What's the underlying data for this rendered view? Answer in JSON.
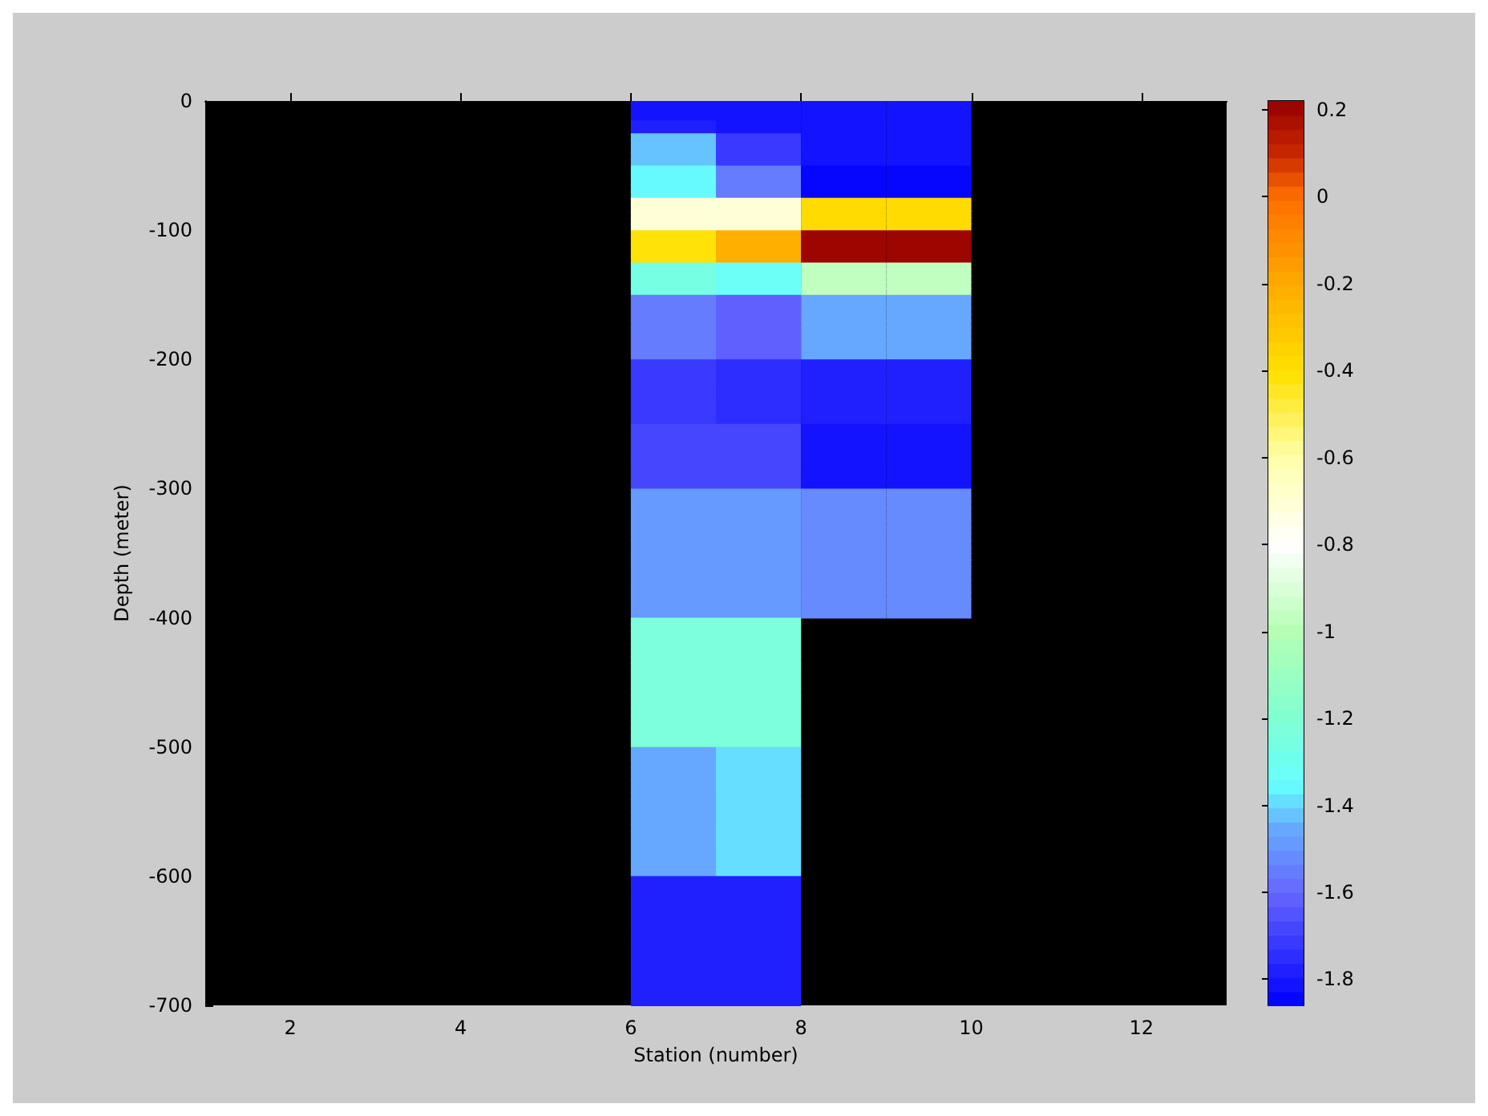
{
  "chart_data": {
    "type": "heatmap",
    "xlabel": "Station (number)",
    "ylabel": "Depth (meter)",
    "cells": [
      [
        null,
        null,
        null,
        null,
        null,
        -1.82,
        -1.82,
        -1.82,
        -1.82,
        null,
        null,
        null
      ],
      [
        null,
        null,
        null,
        null,
        null,
        -1.82,
        -1.82,
        -1.82,
        -1.82,
        null,
        null,
        null
      ],
      [
        null,
        null,
        null,
        null,
        null,
        -1.82,
        -1.82,
        -1.82,
        -1.82,
        null,
        null,
        null
      ],
      [
        null,
        null,
        null,
        null,
        null,
        -1.78,
        -1.8,
        -1.82,
        -1.82,
        null,
        null,
        null
      ],
      [
        null,
        null,
        null,
        null,
        null,
        -1.78,
        -1.8,
        -1.82,
        -1.82,
        null,
        null,
        null
      ],
      [
        null,
        null,
        null,
        null,
        null,
        -1.42,
        -1.7,
        -1.82,
        -1.82,
        null,
        null,
        null
      ],
      [
        null,
        null,
        null,
        null,
        null,
        -1.42,
        -1.7,
        -1.82,
        -1.82,
        null,
        null,
        null
      ],
      [
        null,
        null,
        null,
        null,
        null,
        -1.42,
        -1.7,
        -1.82,
        -1.82,
        null,
        null,
        null
      ],
      [
        null,
        null,
        null,
        null,
        null,
        -1.42,
        -1.7,
        -1.82,
        -1.82,
        null,
        null,
        null
      ],
      [
        null,
        null,
        null,
        null,
        null,
        -1.42,
        -1.7,
        -1.82,
        -1.82,
        null,
        null,
        null
      ],
      [
        null,
        null,
        null,
        null,
        null,
        -1.35,
        -1.55,
        -1.86,
        -1.86,
        null,
        null,
        null
      ],
      [
        null,
        null,
        null,
        null,
        null,
        -1.35,
        -1.55,
        -1.86,
        -1.86,
        null,
        null,
        null
      ],
      [
        null,
        null,
        null,
        null,
        null,
        -1.35,
        -1.55,
        -1.86,
        -1.86,
        null,
        null,
        null
      ],
      [
        null,
        null,
        null,
        null,
        null,
        -1.35,
        -1.55,
        -1.86,
        -1.86,
        null,
        null,
        null
      ],
      [
        null,
        null,
        null,
        null,
        null,
        -1.35,
        -1.55,
        -1.86,
        -1.86,
        null,
        null,
        null
      ],
      [
        null,
        null,
        null,
        null,
        null,
        -0.7,
        -0.7,
        -0.38,
        -0.38,
        null,
        null,
        null
      ],
      [
        null,
        null,
        null,
        null,
        null,
        -0.7,
        -0.7,
        -0.38,
        -0.38,
        null,
        null,
        null
      ],
      [
        null,
        null,
        null,
        null,
        null,
        -0.7,
        -0.7,
        -0.38,
        -0.38,
        null,
        null,
        null
      ],
      [
        null,
        null,
        null,
        null,
        null,
        -0.7,
        -0.7,
        -0.38,
        -0.38,
        null,
        null,
        null
      ],
      [
        null,
        null,
        null,
        null,
        null,
        -0.7,
        -0.7,
        -0.38,
        -0.38,
        null,
        null,
        null
      ],
      [
        null,
        null,
        null,
        null,
        null,
        -0.42,
        -0.22,
        0.2,
        0.2,
        null,
        null,
        null
      ],
      [
        null,
        null,
        null,
        null,
        null,
        -0.42,
        -0.22,
        0.2,
        0.2,
        null,
        null,
        null
      ],
      [
        null,
        null,
        null,
        null,
        null,
        -0.42,
        -0.22,
        0.2,
        0.2,
        null,
        null,
        null
      ],
      [
        null,
        null,
        null,
        null,
        null,
        -0.42,
        -0.22,
        0.2,
        0.2,
        null,
        null,
        null
      ],
      [
        null,
        null,
        null,
        null,
        null,
        -0.42,
        -0.22,
        0.2,
        0.2,
        null,
        null,
        null
      ],
      [
        null,
        null,
        null,
        null,
        null,
        -1.25,
        -1.33,
        -0.97,
        -0.97,
        null,
        null,
        null
      ],
      [
        null,
        null,
        null,
        null,
        null,
        -1.25,
        -1.33,
        -0.97,
        -0.97,
        null,
        null,
        null
      ],
      [
        null,
        null,
        null,
        null,
        null,
        -1.25,
        -1.33,
        -0.97,
        -0.97,
        null,
        null,
        null
      ],
      [
        null,
        null,
        null,
        null,
        null,
        -1.25,
        -1.33,
        -0.97,
        -0.97,
        null,
        null,
        null
      ],
      [
        null,
        null,
        null,
        null,
        null,
        -1.25,
        -1.33,
        -0.97,
        -0.97,
        null,
        null,
        null
      ],
      [
        null,
        null,
        null,
        null,
        null,
        -1.55,
        -1.62,
        -1.45,
        -1.45,
        null,
        null,
        null
      ],
      [
        null,
        null,
        null,
        null,
        null,
        -1.55,
        -1.62,
        -1.45,
        -1.45,
        null,
        null,
        null
      ],
      [
        null,
        null,
        null,
        null,
        null,
        -1.55,
        -1.62,
        -1.45,
        -1.45,
        null,
        null,
        null
      ],
      [
        null,
        null,
        null,
        null,
        null,
        -1.55,
        -1.62,
        -1.45,
        -1.45,
        null,
        null,
        null
      ],
      [
        null,
        null,
        null,
        null,
        null,
        -1.55,
        -1.62,
        -1.45,
        -1.45,
        null,
        null,
        null
      ],
      [
        null,
        null,
        null,
        null,
        null,
        -1.55,
        -1.62,
        -1.45,
        -1.45,
        null,
        null,
        null
      ],
      [
        null,
        null,
        null,
        null,
        null,
        -1.55,
        -1.62,
        -1.45,
        -1.45,
        null,
        null,
        null
      ],
      [
        null,
        null,
        null,
        null,
        null,
        -1.55,
        -1.62,
        -1.45,
        -1.45,
        null,
        null,
        null
      ],
      [
        null,
        null,
        null,
        null,
        null,
        -1.55,
        -1.62,
        -1.45,
        -1.45,
        null,
        null,
        null
      ],
      [
        null,
        null,
        null,
        null,
        null,
        -1.55,
        -1.62,
        -1.45,
        -1.45,
        null,
        null,
        null
      ],
      [
        null,
        null,
        null,
        null,
        null,
        -1.7,
        -1.75,
        -1.78,
        -1.78,
        null,
        null,
        null
      ],
      [
        null,
        null,
        null,
        null,
        null,
        -1.7,
        -1.75,
        -1.78,
        -1.78,
        null,
        null,
        null
      ],
      [
        null,
        null,
        null,
        null,
        null,
        -1.7,
        -1.75,
        -1.78,
        -1.78,
        null,
        null,
        null
      ],
      [
        null,
        null,
        null,
        null,
        null,
        -1.7,
        -1.75,
        -1.78,
        -1.78,
        null,
        null,
        null
      ],
      [
        null,
        null,
        null,
        null,
        null,
        -1.7,
        -1.75,
        -1.78,
        -1.78,
        null,
        null,
        null
      ],
      [
        null,
        null,
        null,
        null,
        null,
        -1.7,
        -1.75,
        -1.78,
        -1.78,
        null,
        null,
        null
      ],
      [
        null,
        null,
        null,
        null,
        null,
        -1.7,
        -1.75,
        -1.78,
        -1.78,
        null,
        null,
        null
      ],
      [
        null,
        null,
        null,
        null,
        null,
        -1.7,
        -1.75,
        -1.78,
        -1.78,
        null,
        null,
        null
      ],
      [
        null,
        null,
        null,
        null,
        null,
        -1.7,
        -1.75,
        -1.78,
        -1.78,
        null,
        null,
        null
      ],
      [
        null,
        null,
        null,
        null,
        null,
        -1.7,
        -1.75,
        -1.78,
        -1.78,
        null,
        null,
        null
      ],
      [
        null,
        null,
        null,
        null,
        null,
        -1.67,
        -1.67,
        -1.8,
        -1.8,
        null,
        null,
        null
      ],
      [
        null,
        null,
        null,
        null,
        null,
        -1.67,
        -1.67,
        -1.8,
        -1.8,
        null,
        null,
        null
      ],
      [
        null,
        null,
        null,
        null,
        null,
        -1.67,
        -1.67,
        -1.8,
        -1.8,
        null,
        null,
        null
      ],
      [
        null,
        null,
        null,
        null,
        null,
        -1.67,
        -1.67,
        -1.8,
        -1.8,
        null,
        null,
        null
      ],
      [
        null,
        null,
        null,
        null,
        null,
        -1.67,
        -1.67,
        -1.8,
        -1.8,
        null,
        null,
        null
      ],
      [
        null,
        null,
        null,
        null,
        null,
        -1.67,
        -1.67,
        -1.8,
        -1.8,
        null,
        null,
        null
      ],
      [
        null,
        null,
        null,
        null,
        null,
        -1.67,
        -1.67,
        -1.8,
        -1.8,
        null,
        null,
        null
      ],
      [
        null,
        null,
        null,
        null,
        null,
        -1.67,
        -1.67,
        -1.8,
        -1.8,
        null,
        null,
        null
      ],
      [
        null,
        null,
        null,
        null,
        null,
        -1.67,
        -1.67,
        -1.8,
        -1.8,
        null,
        null,
        null
      ],
      [
        null,
        null,
        null,
        null,
        null,
        -1.67,
        -1.67,
        -1.8,
        -1.8,
        null,
        null,
        null
      ],
      [
        null,
        null,
        null,
        null,
        null,
        -1.49,
        -1.49,
        -1.52,
        -1.52,
        null,
        null,
        null
      ],
      [
        null,
        null,
        null,
        null,
        null,
        -1.49,
        -1.49,
        -1.52,
        -1.52,
        null,
        null,
        null
      ],
      [
        null,
        null,
        null,
        null,
        null,
        -1.49,
        -1.49,
        -1.52,
        -1.52,
        null,
        null,
        null
      ],
      [
        null,
        null,
        null,
        null,
        null,
        -1.49,
        -1.49,
        -1.52,
        -1.52,
        null,
        null,
        null
      ],
      [
        null,
        null,
        null,
        null,
        null,
        -1.49,
        -1.49,
        -1.52,
        -1.52,
        null,
        null,
        null
      ],
      [
        null,
        null,
        null,
        null,
        null,
        -1.49,
        -1.49,
        -1.52,
        -1.52,
        null,
        null,
        null
      ],
      [
        null,
        null,
        null,
        null,
        null,
        -1.49,
        -1.49,
        -1.52,
        -1.52,
        null,
        null,
        null
      ],
      [
        null,
        null,
        null,
        null,
        null,
        -1.49,
        -1.49,
        -1.52,
        -1.52,
        null,
        null,
        null
      ],
      [
        null,
        null,
        null,
        null,
        null,
        -1.49,
        -1.49,
        -1.52,
        -1.52,
        null,
        null,
        null
      ],
      [
        null,
        null,
        null,
        null,
        null,
        -1.49,
        -1.49,
        -1.52,
        -1.52,
        null,
        null,
        null
      ],
      [
        null,
        null,
        null,
        null,
        null,
        -1.49,
        -1.49,
        -1.52,
        -1.52,
        null,
        null,
        null
      ],
      [
        null,
        null,
        null,
        null,
        null,
        -1.49,
        -1.49,
        -1.52,
        -1.52,
        null,
        null,
        null
      ],
      [
        null,
        null,
        null,
        null,
        null,
        -1.49,
        -1.49,
        -1.52,
        -1.52,
        null,
        null,
        null
      ],
      [
        null,
        null,
        null,
        null,
        null,
        -1.49,
        -1.49,
        -1.52,
        -1.52,
        null,
        null,
        null
      ],
      [
        null,
        null,
        null,
        null,
        null,
        -1.49,
        -1.49,
        -1.52,
        -1.52,
        null,
        null,
        null
      ],
      [
        null,
        null,
        null,
        null,
        null,
        -1.49,
        -1.49,
        -1.52,
        -1.52,
        null,
        null,
        null
      ],
      [
        null,
        null,
        null,
        null,
        null,
        -1.49,
        -1.49,
        -1.52,
        -1.52,
        null,
        null,
        null
      ],
      [
        null,
        null,
        null,
        null,
        null,
        -1.49,
        -1.49,
        -1.52,
        -1.52,
        null,
        null,
        null
      ],
      [
        null,
        null,
        null,
        null,
        null,
        -1.49,
        -1.49,
        -1.52,
        -1.52,
        null,
        null,
        null
      ],
      [
        null,
        null,
        null,
        null,
        null,
        -1.49,
        -1.49,
        -1.52,
        -1.52,
        null,
        null,
        null
      ],
      [
        null,
        null,
        null,
        null,
        null,
        -1.24,
        -1.24,
        null,
        null,
        null,
        null,
        null
      ],
      [
        null,
        null,
        null,
        null,
        null,
        -1.24,
        -1.24,
        null,
        null,
        null,
        null,
        null
      ],
      [
        null,
        null,
        null,
        null,
        null,
        -1.24,
        -1.24,
        null,
        null,
        null,
        null,
        null
      ],
      [
        null,
        null,
        null,
        null,
        null,
        -1.24,
        -1.24,
        null,
        null,
        null,
        null,
        null
      ],
      [
        null,
        null,
        null,
        null,
        null,
        -1.24,
        -1.24,
        null,
        null,
        null,
        null,
        null
      ],
      [
        null,
        null,
        null,
        null,
        null,
        -1.24,
        -1.24,
        null,
        null,
        null,
        null,
        null
      ],
      [
        null,
        null,
        null,
        null,
        null,
        -1.24,
        -1.24,
        null,
        null,
        null,
        null,
        null
      ],
      [
        null,
        null,
        null,
        null,
        null,
        -1.24,
        -1.24,
        null,
        null,
        null,
        null,
        null
      ],
      [
        null,
        null,
        null,
        null,
        null,
        -1.24,
        -1.24,
        null,
        null,
        null,
        null,
        null
      ],
      [
        null,
        null,
        null,
        null,
        null,
        -1.24,
        -1.24,
        null,
        null,
        null,
        null,
        null
      ],
      [
        null,
        null,
        null,
        null,
        null,
        -1.24,
        -1.24,
        null,
        null,
        null,
        null,
        null
      ],
      [
        null,
        null,
        null,
        null,
        null,
        -1.24,
        -1.24,
        null,
        null,
        null,
        null,
        null
      ],
      [
        null,
        null,
        null,
        null,
        null,
        -1.24,
        -1.24,
        null,
        null,
        null,
        null,
        null
      ],
      [
        null,
        null,
        null,
        null,
        null,
        -1.24,
        -1.24,
        null,
        null,
        null,
        null,
        null
      ],
      [
        null,
        null,
        null,
        null,
        null,
        -1.24,
        -1.24,
        null,
        null,
        null,
        null,
        null
      ],
      [
        null,
        null,
        null,
        null,
        null,
        -1.24,
        -1.24,
        null,
        null,
        null,
        null,
        null
      ],
      [
        null,
        null,
        null,
        null,
        null,
        -1.24,
        -1.24,
        null,
        null,
        null,
        null,
        null
      ],
      [
        null,
        null,
        null,
        null,
        null,
        -1.24,
        -1.24,
        null,
        null,
        null,
        null,
        null
      ],
      [
        null,
        null,
        null,
        null,
        null,
        -1.24,
        -1.24,
        null,
        null,
        null,
        null,
        null
      ],
      [
        null,
        null,
        null,
        null,
        null,
        -1.24,
        -1.24,
        null,
        null,
        null,
        null,
        null
      ],
      [
        null,
        null,
        null,
        null,
        null,
        -1.45,
        -1.4,
        null,
        null,
        null,
        null,
        null
      ],
      [
        null,
        null,
        null,
        null,
        null,
        -1.45,
        -1.4,
        null,
        null,
        null,
        null,
        null
      ],
      [
        null,
        null,
        null,
        null,
        null,
        -1.45,
        -1.4,
        null,
        null,
        null,
        null,
        null
      ],
      [
        null,
        null,
        null,
        null,
        null,
        -1.45,
        -1.4,
        null,
        null,
        null,
        null,
        null
      ],
      [
        null,
        null,
        null,
        null,
        null,
        -1.45,
        -1.4,
        null,
        null,
        null,
        null,
        null
      ],
      [
        null,
        null,
        null,
        null,
        null,
        -1.45,
        -1.4,
        null,
        null,
        null,
        null,
        null
      ],
      [
        null,
        null,
        null,
        null,
        null,
        -1.45,
        -1.4,
        null,
        null,
        null,
        null,
        null
      ],
      [
        null,
        null,
        null,
        null,
        null,
        -1.45,
        -1.4,
        null,
        null,
        null,
        null,
        null
      ],
      [
        null,
        null,
        null,
        null,
        null,
        -1.45,
        -1.4,
        null,
        null,
        null,
        null,
        null
      ],
      [
        null,
        null,
        null,
        null,
        null,
        -1.45,
        -1.4,
        null,
        null,
        null,
        null,
        null
      ],
      [
        null,
        null,
        null,
        null,
        null,
        -1.45,
        -1.4,
        null,
        null,
        null,
        null,
        null
      ],
      [
        null,
        null,
        null,
        null,
        null,
        -1.45,
        -1.4,
        null,
        null,
        null,
        null,
        null
      ],
      [
        null,
        null,
        null,
        null,
        null,
        -1.45,
        -1.4,
        null,
        null,
        null,
        null,
        null
      ],
      [
        null,
        null,
        null,
        null,
        null,
        -1.45,
        -1.4,
        null,
        null,
        null,
        null,
        null
      ],
      [
        null,
        null,
        null,
        null,
        null,
        -1.45,
        -1.4,
        null,
        null,
        null,
        null,
        null
      ],
      [
        null,
        null,
        null,
        null,
        null,
        -1.45,
        -1.4,
        null,
        null,
        null,
        null,
        null
      ],
      [
        null,
        null,
        null,
        null,
        null,
        -1.45,
        -1.4,
        null,
        null,
        null,
        null,
        null
      ],
      [
        null,
        null,
        null,
        null,
        null,
        -1.45,
        -1.4,
        null,
        null,
        null,
        null,
        null
      ],
      [
        null,
        null,
        null,
        null,
        null,
        -1.45,
        -1.4,
        null,
        null,
        null,
        null,
        null
      ],
      [
        null,
        null,
        null,
        null,
        null,
        -1.45,
        -1.4,
        null,
        null,
        null,
        null,
        null
      ],
      [
        null,
        null,
        null,
        null,
        null,
        -1.78,
        -1.78,
        null,
        null,
        null,
        null,
        null
      ],
      [
        null,
        null,
        null,
        null,
        null,
        -1.78,
        -1.78,
        null,
        null,
        null,
        null,
        null
      ],
      [
        null,
        null,
        null,
        null,
        null,
        -1.78,
        -1.78,
        null,
        null,
        null,
        null,
        null
      ],
      [
        null,
        null,
        null,
        null,
        null,
        -1.78,
        -1.78,
        null,
        null,
        null,
        null,
        null
      ],
      [
        null,
        null,
        null,
        null,
        null,
        -1.78,
        -1.78,
        null,
        null,
        null,
        null,
        null
      ],
      [
        null,
        null,
        null,
        null,
        null,
        -1.78,
        -1.78,
        null,
        null,
        null,
        null,
        null
      ],
      [
        null,
        null,
        null,
        null,
        null,
        -1.78,
        -1.78,
        null,
        null,
        null,
        null,
        null
      ],
      [
        null,
        null,
        null,
        null,
        null,
        -1.78,
        -1.78,
        null,
        null,
        null,
        null,
        null
      ],
      [
        null,
        null,
        null,
        null,
        null,
        -1.78,
        -1.78,
        null,
        null,
        null,
        null,
        null
      ],
      [
        null,
        null,
        null,
        null,
        null,
        -1.78,
        -1.78,
        null,
        null,
        null,
        null,
        null
      ],
      [
        null,
        null,
        null,
        null,
        null,
        -1.78,
        -1.78,
        null,
        null,
        null,
        null,
        null
      ],
      [
        null,
        null,
        null,
        null,
        null,
        -1.78,
        -1.78,
        null,
        null,
        null,
        null,
        null
      ],
      [
        null,
        null,
        null,
        null,
        null,
        -1.78,
        -1.78,
        null,
        null,
        null,
        null,
        null
      ],
      [
        null,
        null,
        null,
        null,
        null,
        -1.78,
        -1.78,
        null,
        null,
        null,
        null,
        null
      ],
      [
        null,
        null,
        null,
        null,
        null,
        -1.78,
        -1.78,
        null,
        null,
        null,
        null,
        null
      ],
      [
        null,
        null,
        null,
        null,
        null,
        -1.78,
        -1.78,
        null,
        null,
        null,
        null,
        null
      ],
      [
        null,
        null,
        null,
        null,
        null,
        -1.78,
        -1.78,
        null,
        null,
        null,
        null,
        null
      ],
      [
        null,
        null,
        null,
        null,
        null,
        -1.78,
        -1.78,
        null,
        null,
        null,
        null,
        null
      ],
      [
        null,
        null,
        null,
        null,
        null,
        -1.78,
        -1.78,
        null,
        null,
        null,
        null,
        null
      ],
      [
        null,
        null,
        null,
        null,
        null,
        -1.78,
        -1.78,
        null,
        null,
        null,
        null,
        null
      ]
    ],
    "xlim": [
      1,
      13
    ],
    "xticks": [
      2,
      4,
      6,
      8,
      10,
      12
    ],
    "ylim": [
      -700,
      0
    ],
    "yticks": [
      -700,
      -600,
      -500,
      -400,
      -300,
      -200,
      -100,
      0
    ],
    "clim": [
      -1.86,
      0.22
    ],
    "cticks": [
      -1.8,
      -1.6,
      -1.4,
      -1.2,
      -1,
      -0.8,
      -0.6,
      -0.4,
      -0.2,
      0,
      0.2
    ]
  }
}
